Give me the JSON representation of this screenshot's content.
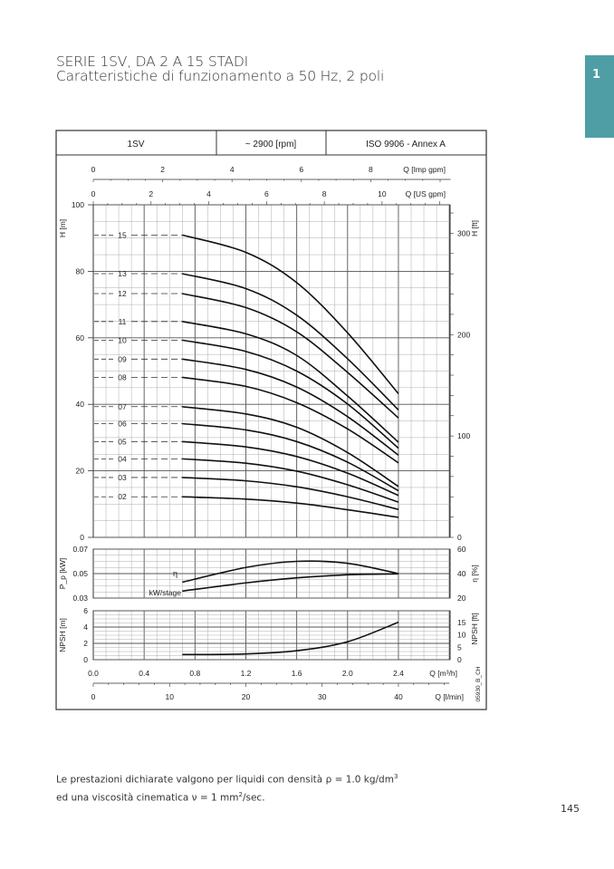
{
  "page": {
    "title_line1": "SERIE 1SV, DA 2 A 15 STADI",
    "title_line2": "Caratteristiche di funzionamento a 50 Hz, 2 poli",
    "tab_number": "1",
    "note_line1_pre": "Le prestazioni dichiarate valgono per liquidi con densità ρ = 1.0 kg/dm",
    "note_line1_sup": "3",
    "note_line2_pre": "ed una viscosità cinematica ν = 1 mm",
    "note_line2_sup": "2",
    "note_line2_post": "/sec.",
    "page_number": "145",
    "tab_color": "#4f9ea6"
  },
  "chart_data": {
    "type": "line",
    "header": [
      "1SV",
      "~ 2900 [rpm]",
      "ISO 9906 - Annex A"
    ],
    "code": "05930_B_CH",
    "x": [
      0.7,
      1.2,
      1.6,
      2.0,
      2.4
    ],
    "x_axes": {
      "m3h": {
        "label": "Q [m³/h]",
        "ticks": [
          "0.0",
          "0.4",
          "0.8",
          "1.2",
          "1.6",
          "2.0",
          "2.4"
        ],
        "range": [
          0,
          2.8
        ]
      },
      "lmin": {
        "label": "Q [l/min]",
        "ticks": [
          "0",
          "10",
          "20",
          "30",
          "40"
        ]
      },
      "imp_gpm": {
        "label": "Q [Imp gpm]",
        "ticks": [
          "0",
          "2",
          "4",
          "6",
          "8"
        ]
      },
      "us_gpm": {
        "label": "Q [US gpm]",
        "ticks": [
          "0",
          "2",
          "4",
          "6",
          "8",
          "10"
        ]
      }
    },
    "head": {
      "ylabel": "H [m]",
      "ylabel_right": "H [ft]",
      "ylim": [
        0,
        100
      ],
      "yticks": [
        "0",
        "20",
        "40",
        "60",
        "80",
        "100"
      ],
      "yticks_right": [
        "0",
        "100",
        "200",
        "300"
      ],
      "series": [
        {
          "name": "15",
          "values": [
            90.9,
            85.7,
            76.6,
            61.5,
            43.2
          ]
        },
        {
          "name": "13",
          "values": [
            79.3,
            74.8,
            66.8,
            53.7,
            38.3
          ]
        },
        {
          "name": "12",
          "values": [
            73.3,
            69.1,
            61.8,
            49.6,
            35.9
          ]
        },
        {
          "name": "11",
          "values": [
            64.9,
            61.2,
            54.7,
            42.5,
            28.6
          ]
        },
        {
          "name": "10",
          "values": [
            59.3,
            55.9,
            50.0,
            40.1,
            26.8
          ]
        },
        {
          "name": "09",
          "values": [
            53.6,
            50.5,
            45.2,
            36.3,
            24.7
          ]
        },
        {
          "name": "08",
          "values": [
            48.1,
            45.4,
            40.5,
            32.6,
            22.4
          ]
        },
        {
          "name": "07",
          "values": [
            39.3,
            37.1,
            33.1,
            25.5,
            15.3
          ]
        },
        {
          "name": "06",
          "values": [
            34.2,
            32.3,
            28.8,
            22.6,
            14.0
          ]
        },
        {
          "name": "05",
          "values": [
            28.8,
            27.2,
            24.3,
            19.3,
            12.6
          ]
        },
        {
          "name": "04",
          "values": [
            23.6,
            22.3,
            19.9,
            15.8,
            10.6
          ]
        },
        {
          "name": "03",
          "values": [
            18.0,
            17.0,
            15.2,
            12.2,
            8.4
          ]
        },
        {
          "name": "02",
          "values": [
            12.2,
            11.5,
            10.3,
            8.3,
            6.0
          ]
        }
      ]
    },
    "power": {
      "ylabel": "P_p [kW]",
      "ylabel_main": "P",
      "ylabel_sub": "p",
      "ylabel_unit": "[kW]",
      "ylabel_right": "η [%]",
      "ylim": [
        0.03,
        0.07
      ],
      "ylim_right": [
        20,
        60
      ],
      "yticks": [
        "0.03",
        "0.05",
        "0.07"
      ],
      "yticks_right": [
        "20",
        "40",
        "60"
      ],
      "efficiency": {
        "name": "η",
        "values": [
          33.0,
          45.0,
          50.0,
          48.4,
          40.0
        ]
      },
      "kw_stage": {
        "name": "kW/stage",
        "values": [
          0.0357,
          0.0424,
          0.0465,
          0.049,
          0.0498
        ]
      }
    },
    "npsh": {
      "ylabel": "NPSH [m]",
      "ylabel_right": "NPSH [ft]",
      "ylim": [
        0,
        6
      ],
      "yticks": [
        "0",
        "2",
        "4",
        "6"
      ],
      "yticks_right": [
        "0",
        "5",
        "10",
        "15"
      ],
      "values": [
        0.63,
        0.7,
        1.1,
        2.2,
        4.6
      ]
    }
  }
}
